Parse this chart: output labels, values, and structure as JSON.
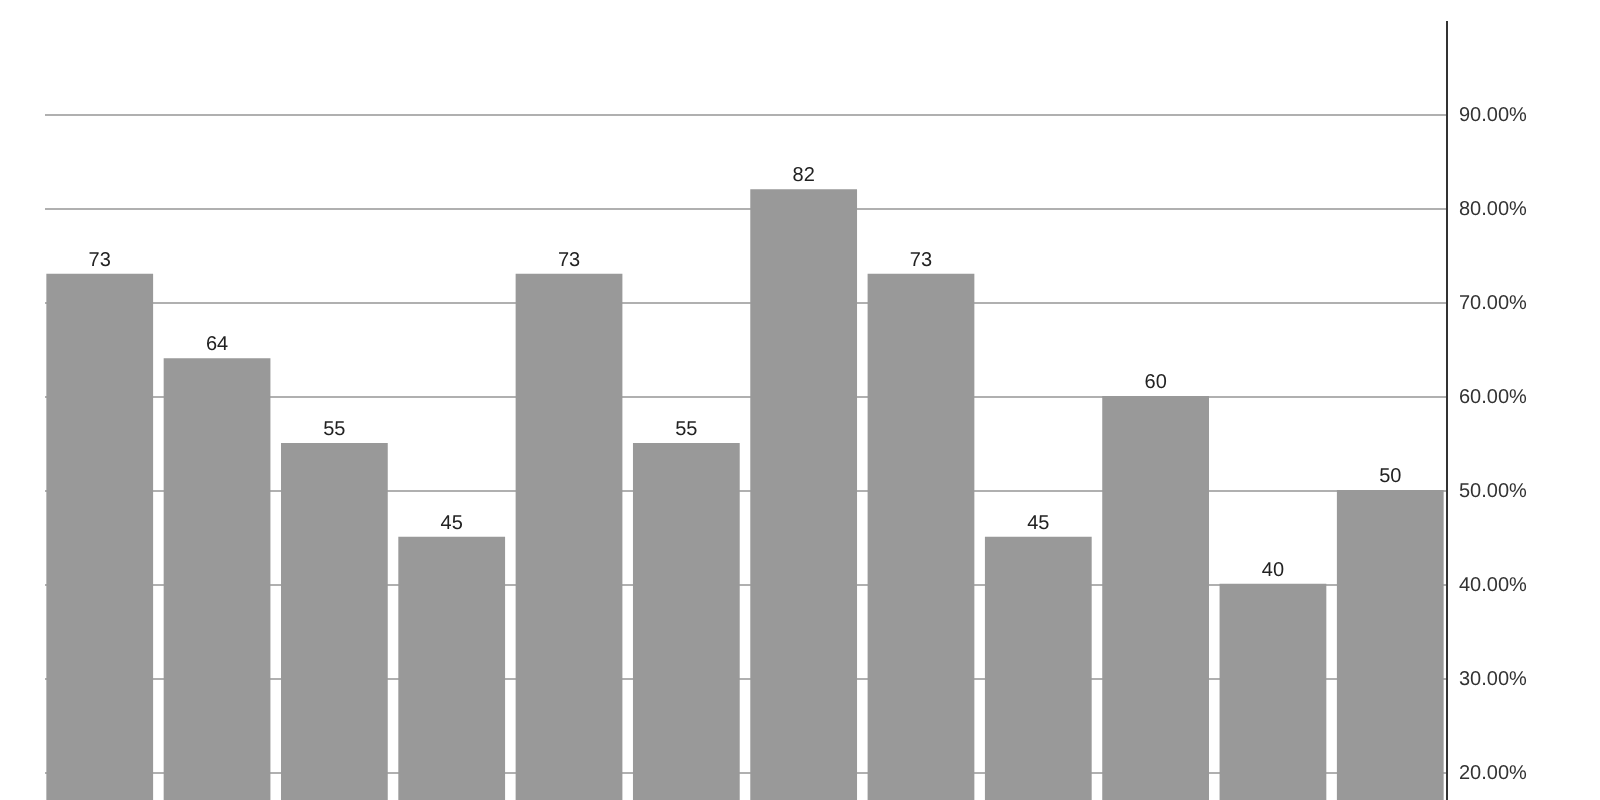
{
  "chart_data": {
    "type": "bar",
    "categories": [
      null,
      null,
      null,
      null,
      null,
      null,
      null,
      null,
      null,
      null,
      null,
      null
    ],
    "values": [
      73,
      64,
      55,
      45,
      73,
      55,
      82,
      73,
      45,
      60,
      40,
      50
    ],
    "color": "#999999",
    "ylim": [
      17,
      100
    ],
    "yticks": [
      {
        "value": 20,
        "label": "20.00%"
      },
      {
        "value": 30,
        "label": "30.00%"
      },
      {
        "value": 40,
        "label": "40.00%"
      },
      {
        "value": 50,
        "label": "50.00%"
      },
      {
        "value": 60,
        "label": "60.00%"
      },
      {
        "value": 70,
        "label": "70.00%"
      },
      {
        "value": 80,
        "label": "80.00%"
      },
      {
        "value": 90,
        "label": "90.00%"
      }
    ],
    "grid": "y",
    "data_labels": true
  }
}
